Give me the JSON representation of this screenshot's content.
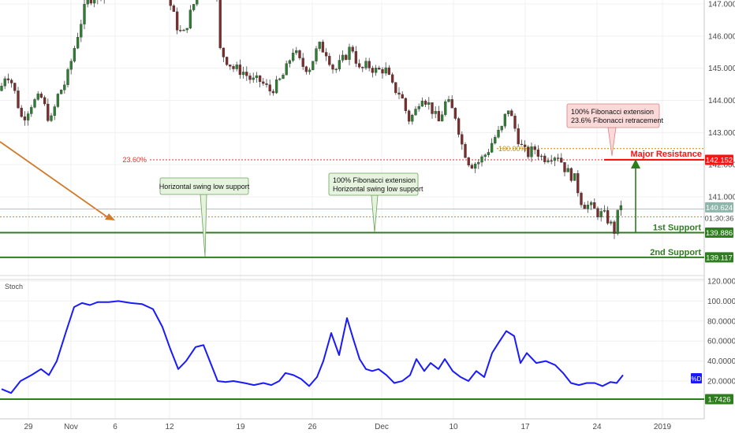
{
  "chart_data": [
    {
      "type": "candlestick",
      "ylim": [
        139.0,
        147.4
      ],
      "y_ticks": [
        "147.000",
        "146.000",
        "145.000",
        "144.000",
        "143.000",
        "142.000",
        "141.000"
      ],
      "x_ticks": [
        "29",
        "Nov",
        "6",
        "12",
        "19",
        "26",
        "Dec",
        "10",
        "17",
        "24",
        "2019"
      ],
      "price_path": [
        [
          0,
          144.3
        ],
        [
          8,
          144.9
        ],
        [
          16,
          144.5
        ],
        [
          28,
          143.4
        ],
        [
          40,
          143.9
        ],
        [
          52,
          144.1
        ],
        [
          64,
          143.3
        ],
        [
          74,
          144.2
        ],
        [
          84,
          144.6
        ],
        [
          94,
          145.6
        ],
        [
          100,
          146.2
        ],
        [
          110,
          147.1
        ],
        [
          122,
          147.3
        ],
        [
          132,
          147.4
        ],
        [
          210,
          147.5
        ],
        [
          218,
          146.8
        ],
        [
          226,
          146.2
        ],
        [
          232,
          146.0
        ],
        [
          240,
          146.6
        ],
        [
          250,
          147.3
        ],
        [
          262,
          147.6
        ],
        [
          276,
          147.3
        ],
        [
          278,
          145.6
        ],
        [
          286,
          145.3
        ],
        [
          296,
          145.0
        ],
        [
          308,
          144.9
        ],
        [
          320,
          144.6
        ],
        [
          330,
          144.6
        ],
        [
          342,
          144.3
        ],
        [
          352,
          144.5
        ],
        [
          362,
          144.9
        ],
        [
          372,
          145.6
        ],
        [
          382,
          145.1
        ],
        [
          392,
          145.0
        ],
        [
          404,
          145.7
        ],
        [
          414,
          145.5
        ],
        [
          424,
          144.9
        ],
        [
          436,
          145.3
        ],
        [
          446,
          145.7
        ],
        [
          456,
          144.9
        ],
        [
          466,
          145.1
        ],
        [
          478,
          144.9
        ],
        [
          488,
          145.0
        ],
        [
          498,
          144.4
        ],
        [
          508,
          144.2
        ],
        [
          518,
          143.4
        ],
        [
          526,
          143.6
        ],
        [
          534,
          144.2
        ],
        [
          546,
          143.8
        ],
        [
          556,
          143.3
        ],
        [
          566,
          144.0
        ],
        [
          578,
          143.5
        ],
        [
          586,
          142.6
        ],
        [
          596,
          142.0
        ],
        [
          608,
          142.1
        ],
        [
          618,
          142.4
        ],
        [
          626,
          142.8
        ],
        [
          636,
          143.1
        ],
        [
          644,
          143.8
        ],
        [
          652,
          143.2
        ],
        [
          660,
          142.6
        ],
        [
          668,
          142.3
        ],
        [
          678,
          142.5
        ],
        [
          688,
          142.2
        ],
        [
          698,
          142.3
        ],
        [
          708,
          142.3
        ],
        [
          718,
          141.8
        ],
        [
          728,
          141.6
        ],
        [
          738,
          140.8
        ],
        [
          748,
          140.7
        ],
        [
          758,
          140.5
        ],
        [
          768,
          140.4
        ],
        [
          780,
          139.9
        ],
        [
          786,
          140.9
        ],
        [
          790,
          140.6
        ]
      ]
    },
    {
      "type": "line",
      "title": "Stoch",
      "ylim": [
        0,
        120
      ],
      "y_ticks": [
        "120.0000",
        "100.0000",
        "80.0000",
        "60.0000",
        "40.0000",
        "20.0000"
      ],
      "x": [
        2,
        14,
        26,
        40,
        52,
        62,
        72,
        84,
        94,
        104,
        114,
        124,
        138,
        150,
        166,
        180,
        194,
        206,
        216,
        226,
        236,
        248,
        258,
        266,
        276,
        286,
        296,
        310,
        322,
        334,
        344,
        354,
        362,
        372,
        382,
        392,
        402,
        410,
        420,
        430,
        440,
        448,
        456,
        464,
        472,
        480,
        490,
        500,
        510,
        520,
        528,
        538,
        546,
        556,
        564,
        574,
        584,
        594,
        604,
        614,
        624,
        632,
        642,
        652,
        660,
        668,
        680,
        692,
        704,
        714,
        724,
        734,
        744,
        754,
        764,
        774,
        782,
        790
      ],
      "values": [
        12,
        8,
        20,
        26,
        32,
        26,
        40,
        70,
        94,
        98,
        96,
        99,
        99,
        100,
        98,
        97,
        92,
        74,
        52,
        32,
        40,
        54,
        56,
        40,
        20,
        19,
        20,
        18,
        16,
        18,
        16,
        20,
        28,
        26,
        22,
        15,
        24,
        40,
        68,
        46,
        83,
        62,
        42,
        32,
        30,
        32,
        26,
        18,
        20,
        26,
        42,
        30,
        38,
        32,
        42,
        30,
        24,
        20,
        30,
        24,
        48,
        58,
        70,
        65,
        38,
        48,
        38,
        40,
        36,
        28,
        18,
        16,
        18,
        18,
        15,
        19,
        18,
        26
      ]
    }
  ],
  "price_axis": {
    "major_resistance": {
      "value": 142.152,
      "label": "142.152",
      "title": "Major Resistance"
    },
    "last_price": {
      "value": 140.624,
      "label": "140.624"
    },
    "countdown": "01:30:36",
    "support_1": {
      "value": 139.886,
      "label": "139.886",
      "title": "1st Support"
    },
    "support_2": {
      "value": 139.117,
      "label": "139.117",
      "title": "2nd Support"
    }
  },
  "fib_levels": {
    "level_23": {
      "value": 142.152,
      "label": "23.60%"
    },
    "level_100": {
      "value": 142.5,
      "label": "100.00%"
    },
    "level_orange": {
      "value": 140.38
    }
  },
  "annotations": {
    "swing_low": "Horizontal swing low support",
    "fib_ext_swing": [
      "100% Fibonacci extension",
      "Horizontal swing low support"
    ],
    "fib_ext_retrace": [
      "100% Fibonacci extension",
      "23.6% Fibonacci retracement"
    ]
  },
  "stoch_axis": {
    "level": {
      "value": 1.7426,
      "label": "1.7426"
    },
    "indicator_tag": "%D"
  },
  "colors": {
    "bull": "#2e7d32",
    "bear": "#7b2c2c",
    "resistance": "#ff1111",
    "support": "#2e7d1e",
    "stoch_line": "#1a1aff",
    "last_price_tag": "#8fb6ad",
    "fib_dotted": "#c8860a",
    "orange_arrow": "#d07a2a",
    "grid": "#f0f0f0",
    "note_green_bg": "#e6f4df",
    "note_red_bg": "#fbd9d9"
  }
}
